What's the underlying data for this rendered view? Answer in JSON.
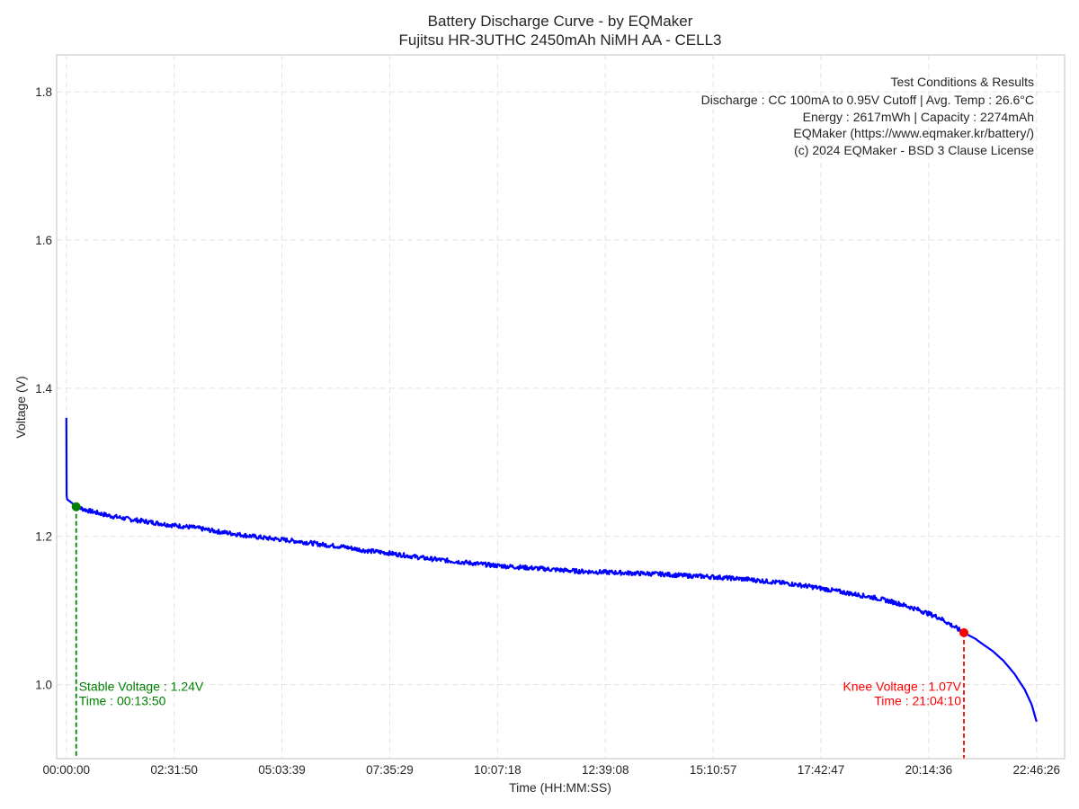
{
  "chart_data": {
    "type": "line",
    "title": "Battery Discharge Curve - by EQMaker",
    "subtitle": "Fujitsu HR-3UTHC 2450mAh NiMH AA - CELL3",
    "xlabel": "Time (HH:MM:SS)",
    "ylabel": "Voltage (V)",
    "x_ticks": [
      "00:00:00",
      "02:31:50",
      "05:03:39",
      "07:35:29",
      "10:07:18",
      "12:39:08",
      "15:10:57",
      "17:42:47",
      "20:14:36",
      "22:46:26"
    ],
    "y_ticks": [
      "1.0",
      "1.2",
      "1.4",
      "1.6",
      "1.8"
    ],
    "xlim": [
      "-00:13:40",
      "23:26:00"
    ],
    "ylim": [
      0.9,
      1.85
    ],
    "grid": true,
    "colors": {
      "line": "#0000ff",
      "stable": "#008000",
      "knee": "#ff0000"
    },
    "series": [
      {
        "x": [
          "00:00:00",
          "00:00:20",
          "00:01:00",
          "00:04:00",
          "00:08:00",
          "00:13:50",
          "00:30:00",
          "01:00:00",
          "01:30:00",
          "02:00:00",
          "02:30:00",
          "03:00:00",
          "03:30:00",
          "04:00:00",
          "04:30:00",
          "05:00:00",
          "05:30:00",
          "06:00:00",
          "06:30:00",
          "07:00:00",
          "07:30:00",
          "08:00:00",
          "08:30:00",
          "09:00:00",
          "09:30:00",
          "10:00:00",
          "10:30:00",
          "11:00:00",
          "11:30:00",
          "12:00:00",
          "12:30:00",
          "13:00:00",
          "13:30:00",
          "14:00:00",
          "14:30:00",
          "15:00:00",
          "15:30:00",
          "16:00:00",
          "16:30:00",
          "17:00:00",
          "17:30:00",
          "18:00:00",
          "18:30:00",
          "19:00:00",
          "19:30:00",
          "20:00:00",
          "20:30:00",
          "21:04:10",
          "21:20:00",
          "21:30:00",
          "21:45:00",
          "22:00:00",
          "22:15:00",
          "22:30:00",
          "22:40:00",
          "22:46:26"
        ],
        "y": [
          1.36,
          1.255,
          1.25,
          1.248,
          1.245,
          1.24,
          1.235,
          1.228,
          1.223,
          1.219,
          1.215,
          1.212,
          1.207,
          1.203,
          1.199,
          1.196,
          1.193,
          1.189,
          1.186,
          1.181,
          1.178,
          1.174,
          1.17,
          1.167,
          1.164,
          1.161,
          1.159,
          1.157,
          1.155,
          1.153,
          1.152,
          1.151,
          1.15,
          1.149,
          1.147,
          1.146,
          1.144,
          1.142,
          1.139,
          1.136,
          1.132,
          1.127,
          1.122,
          1.117,
          1.11,
          1.101,
          1.09,
          1.07,
          1.062,
          1.055,
          1.045,
          1.032,
          1.015,
          0.993,
          0.972,
          0.95
        ]
      }
    ],
    "markers": {
      "stable": {
        "x": "00:13:50",
        "y": 1.24,
        "label1": "Stable Voltage : 1.24V",
        "label2": "Time : 00:13:50"
      },
      "knee": {
        "x": "21:04:10",
        "y": 1.07,
        "label1": "Knee Voltage : 1.07V",
        "label2": "Time : 21:04:10"
      }
    },
    "annotation": {
      "lines": [
        "Test Conditions & Results",
        "Discharge : CC 100mA to 0.95V Cutoff | Avg. Temp : 26.6°C",
        "Energy : 2617mWh | Capacity : 2274mAh",
        "EQMaker (https://www.eqmaker.kr/battery/)",
        "(c) 2024 EQMaker - BSD 3 Clause License"
      ]
    }
  }
}
